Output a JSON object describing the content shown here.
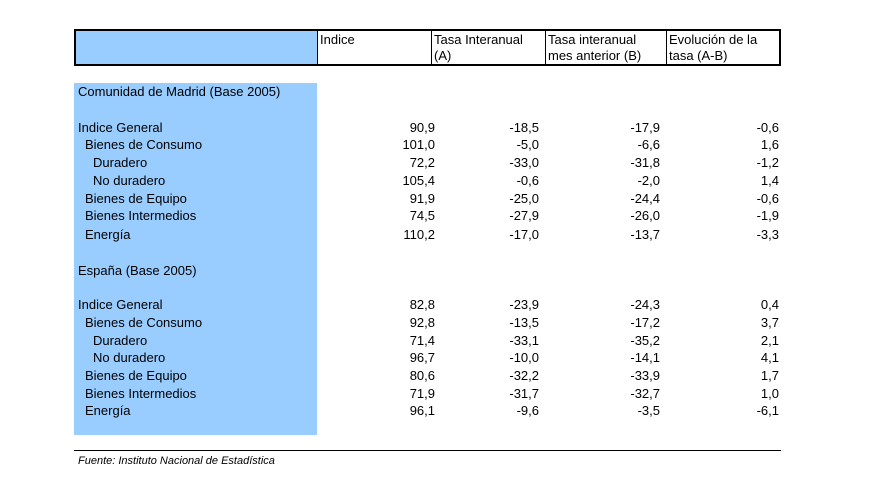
{
  "header": {
    "col_indice": "Indice",
    "col_a_line1": "Tasa Interanual",
    "col_a_line2": "(A)",
    "col_b_line1": "Tasa interanual",
    "col_b_line2": "mes anterior (B)",
    "col_c_line1": "Evolución de la",
    "col_c_line2": "tasa (A-B)"
  },
  "sections": [
    {
      "title": "Comunidad de Madrid (Base 2005)",
      "rows": [
        {
          "label": "Indice General",
          "indent": 0,
          "indice": "90,9",
          "a": "-18,5",
          "b": "-17,9",
          "c": "-0,6"
        },
        {
          "label": "Bienes de Consumo",
          "indent": 1,
          "indice": "101,0",
          "a": "-5,0",
          "b": "-6,6",
          "c": "1,6"
        },
        {
          "label": "Duradero",
          "indent": 2,
          "indice": "72,2",
          "a": "-33,0",
          "b": "-31,8",
          "c": "-1,2"
        },
        {
          "label": "No duradero",
          "indent": 2,
          "indice": "105,4",
          "a": "-0,6",
          "b": "-2,0",
          "c": "1,4"
        },
        {
          "label": "Bienes de Equipo",
          "indent": 1,
          "indice": "91,9",
          "a": "-25,0",
          "b": "-24,4",
          "c": "-0,6"
        },
        {
          "label": "Bienes Intermedios",
          "indent": 1,
          "indice": "74,5",
          "a": "-27,9",
          "b": "-26,0",
          "c": "-1,9"
        },
        {
          "label": "Energía",
          "indent": 1,
          "indice": "110,2",
          "a": "-17,0",
          "b": "-13,7",
          "c": "-3,3"
        }
      ]
    },
    {
      "title": "España (Base 2005)",
      "rows": [
        {
          "label": "Indice General",
          "indent": 0,
          "indice": "82,8",
          "a": "-23,9",
          "b": "-24,3",
          "c": "0,4"
        },
        {
          "label": "Bienes de Consumo",
          "indent": 1,
          "indice": "92,8",
          "a": "-13,5",
          "b": "-17,2",
          "c": "3,7"
        },
        {
          "label": "Duradero",
          "indent": 2,
          "indice": "71,4",
          "a": "-33,1",
          "b": "-35,2",
          "c": "2,1"
        },
        {
          "label": "No duradero",
          "indent": 2,
          "indice": "96,7",
          "a": "-10,0",
          "b": "-14,1",
          "c": "4,1"
        },
        {
          "label": "Bienes de Equipo",
          "indent": 1,
          "indice": "80,6",
          "a": "-32,2",
          "b": "-33,9",
          "c": "1,7"
        },
        {
          "label": "Bienes Intermedios",
          "indent": 1,
          "indice": "71,9",
          "a": "-31,7",
          "b": "-32,7",
          "c": "1,0"
        },
        {
          "label": "Energía",
          "indent": 1,
          "indice": "96,1",
          "a": "-9,6",
          "b": "-3,5",
          "c": "-6,1"
        }
      ]
    }
  ],
  "footer": "Fuente: Instituto Nacional de Estadística",
  "colors": {
    "highlight": "#99ccff"
  }
}
